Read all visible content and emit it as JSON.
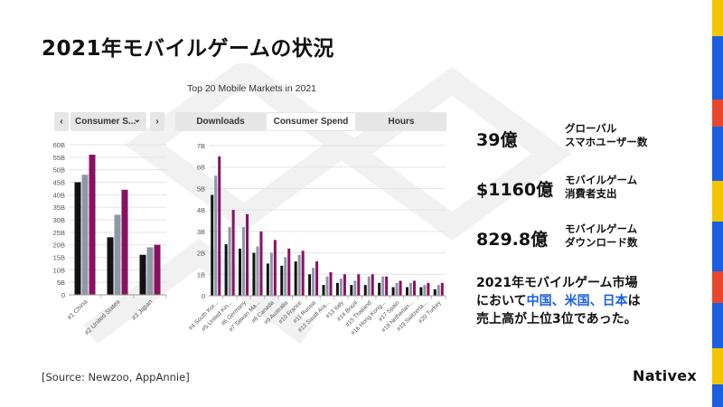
{
  "title": "2021年モバイルゲームの状況",
  "chart_title": "Top 20 Mobile Markets in 2021",
  "nav": {
    "prev": "‹",
    "next": "›",
    "select_label": "Consumer S...",
    "select_icon": "chevron-down-icon"
  },
  "tabs": [
    {
      "label": "Downloads",
      "active": false
    },
    {
      "label": "Consumer Spend",
      "active": true
    },
    {
      "label": "Hours",
      "active": false
    }
  ],
  "stats": [
    {
      "value": "39億",
      "label1": "グローバル",
      "label2": "スマホユーザー数"
    },
    {
      "value": "$1160億",
      "label1": "モバイルゲーム",
      "label2": "消費者支出"
    },
    {
      "value": "829.8億",
      "label1": "モバイルゲーム",
      "label2": "ダウンロード数"
    }
  ],
  "summary": {
    "line1": "2021年モバイルゲーム市場",
    "line2a": "において",
    "hl1": "中国、米国、日本",
    "line2b": "は",
    "line3": "売上高が上位3位であった。"
  },
  "source": "[Source: Newzoo, AppAnnie]",
  "logo": "Nativex",
  "colors": {
    "series1": "#111111",
    "series2": "#8c98a3",
    "series3": "#8b0f63",
    "highlight": "#1a5fe0"
  },
  "deco_colors": [
    "#f5c400",
    "#1a5fe0",
    "#e8472d",
    "#1a5fe0",
    "#f5c400",
    "#1a5fe0",
    "#e8472d",
    "#1a5fe0",
    "#f5c400",
    "#1a5fe0"
  ],
  "chart_data": [
    {
      "type": "bar",
      "categories": [
        "#1 China",
        "#2 United States",
        "#3 Japan"
      ],
      "series": [
        {
          "values": [
            45,
            23,
            16
          ]
        },
        {
          "values": [
            48,
            32,
            19
          ]
        },
        {
          "values": [
            56,
            42,
            20
          ]
        }
      ],
      "yticks": [
        "0",
        "5B",
        "10B",
        "15B",
        "20B",
        "25B",
        "30B",
        "35B",
        "40B",
        "45B",
        "50B",
        "55B",
        "60B"
      ],
      "ylim": [
        0,
        60
      ]
    },
    {
      "type": "bar",
      "categories": [
        "#4 South Kor...",
        "#5 United Kin...",
        "#6 Germany",
        "#7 Taiwan Ma...",
        "#8 Canada",
        "#9 Australia",
        "#10 France",
        "#11 Russia",
        "#12 Saudi Ara...",
        "#13 Italy",
        "#14 Brazil",
        "#15 Thailand",
        "#16 Hong Kong...",
        "#17 Spain",
        "#18 Netherlan...",
        "#19 Switzerla...",
        "#20 Turkey"
      ],
      "series": [
        {
          "values": [
            4.7,
            2.4,
            2.2,
            2.0,
            1.5,
            1.4,
            1.6,
            1.0,
            0.5,
            0.6,
            0.5,
            0.5,
            0.6,
            0.4,
            0.4,
            0.4,
            0.3
          ]
        },
        {
          "values": [
            5.6,
            3.2,
            3.2,
            2.3,
            2.0,
            1.8,
            1.9,
            1.3,
            0.9,
            0.8,
            0.7,
            0.9,
            0.9,
            0.6,
            0.6,
            0.5,
            0.5
          ]
        },
        {
          "values": [
            6.5,
            4.0,
            3.8,
            3.0,
            2.6,
            2.2,
            2.1,
            1.6,
            1.1,
            1.0,
            1.0,
            1.0,
            0.9,
            0.7,
            0.7,
            0.6,
            0.6
          ]
        }
      ],
      "yticks": [
        "0",
        "1B",
        "2B",
        "3B",
        "4B",
        "5B",
        "6B",
        "7B"
      ],
      "ylim": [
        0,
        7
      ]
    }
  ]
}
